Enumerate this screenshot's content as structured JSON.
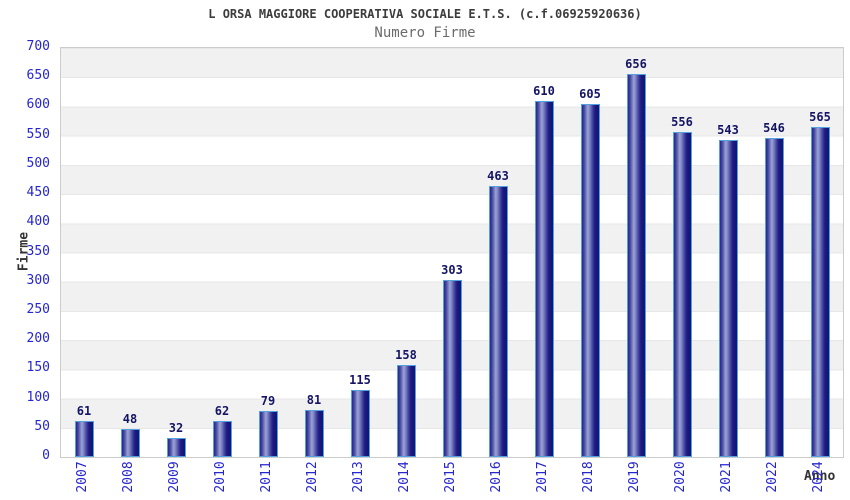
{
  "header": {
    "title": "L ORSA MAGGIORE COOPERATIVA SOCIALE E.T.S. (c.f.06925920636)",
    "subtitle": "Numero Firme"
  },
  "chart_data": {
    "type": "bar",
    "title": "L ORSA MAGGIORE COOPERATIVA SOCIALE E.T.S. (c.f.06925920636)",
    "subtitle": "Numero Firme",
    "xlabel": "Anno",
    "ylabel": "Firme",
    "categories": [
      "2007",
      "2008",
      "2009",
      "2010",
      "2011",
      "2012",
      "2013",
      "2014",
      "2015",
      "2016",
      "2017",
      "2018",
      "2019",
      "2020",
      "2021",
      "2022",
      "2024"
    ],
    "values": [
      61,
      48,
      32,
      62,
      79,
      81,
      115,
      158,
      303,
      463,
      610,
      605,
      656,
      556,
      543,
      546,
      565
    ],
    "ylim": [
      0,
      700
    ],
    "y_ticks": [
      0,
      50,
      100,
      150,
      200,
      250,
      300,
      350,
      400,
      450,
      500,
      550,
      600,
      650,
      700
    ],
    "grid": "alternating horizontal gray/white bands every 50 units",
    "legend": "none",
    "colors": {
      "axis_text": "#2626cf",
      "value_label": "#141465",
      "bar_border": "#55a0df",
      "bar_dark": "#1b1b82",
      "bar_light": "#9ba3d6",
      "band_gray": "#f1f1f1",
      "plot_border": "#cccccc",
      "title_text": "#3c3c3c",
      "subtitle_text": "#6b6b6b",
      "axis_title_text": "#333333"
    }
  }
}
